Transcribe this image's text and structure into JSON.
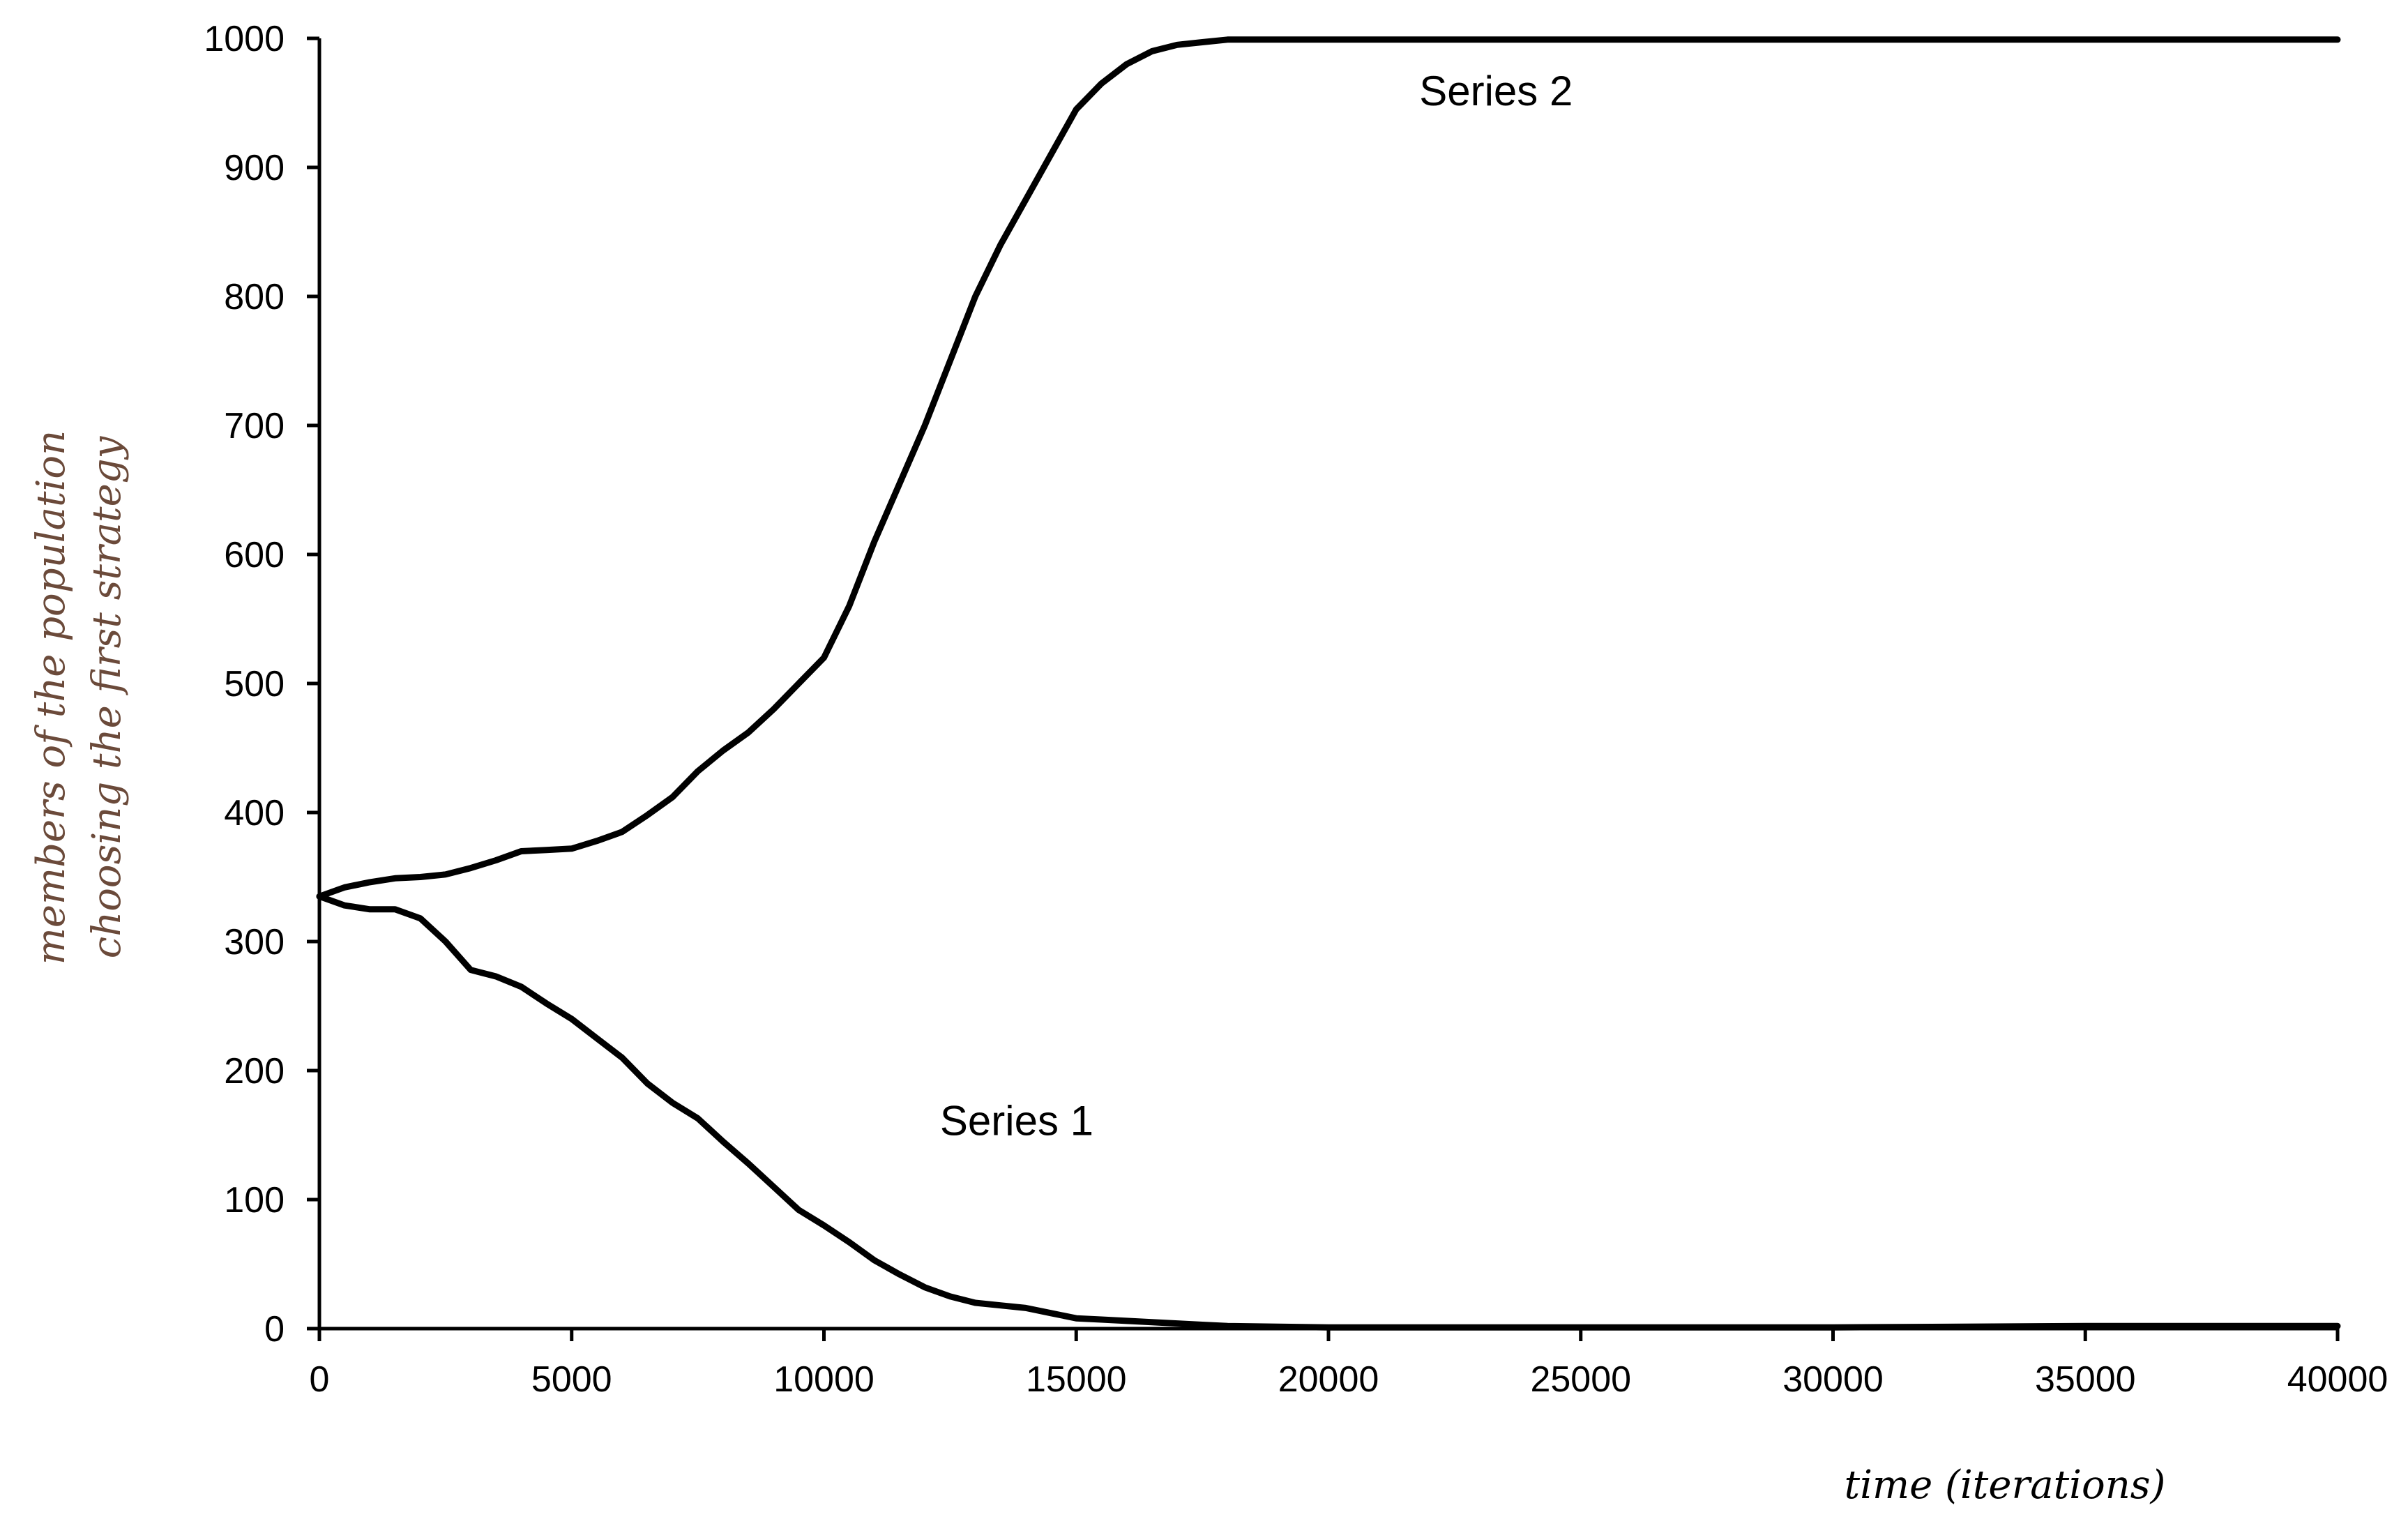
{
  "chart_data": {
    "type": "line",
    "title": "",
    "xlabel": "time (iterations)",
    "ylabel_lines": [
      "members of the population",
      "choosing the first strategy"
    ],
    "xlim": [
      0,
      40000
    ],
    "ylim": [
      0,
      1000
    ],
    "x_ticks": [
      0,
      5000,
      10000,
      15000,
      20000,
      25000,
      30000,
      35000,
      40000
    ],
    "y_ticks": [
      0,
      100,
      200,
      300,
      400,
      500,
      600,
      700,
      800,
      900,
      1000
    ],
    "grid": false,
    "legend": "none",
    "series": [
      {
        "name": "Series 1",
        "x": [
          0,
          500,
          1000,
          1500,
          2000,
          2500,
          3000,
          3500,
          4000,
          4500,
          5000,
          5500,
          6000,
          6500,
          7000,
          7500,
          8000,
          8500,
          9000,
          9500,
          10000,
          10500,
          11000,
          11500,
          12000,
          12500,
          13000,
          13500,
          14000,
          14500,
          15000,
          15500,
          16000,
          16500,
          17000,
          17500,
          18000,
          20000,
          25000,
          30000,
          35000,
          38000,
          40000
        ],
        "values": [
          335,
          328,
          325,
          325,
          318,
          300,
          278,
          273,
          265,
          252,
          240,
          225,
          210,
          190,
          175,
          163,
          145,
          128,
          110,
          92,
          80,
          67,
          53,
          42,
          32,
          25,
          20,
          18,
          16,
          12,
          8,
          7,
          6,
          5,
          4,
          3,
          2,
          1,
          1,
          1,
          2,
          2,
          2
        ]
      },
      {
        "name": "Series 2",
        "x": [
          0,
          500,
          1000,
          1500,
          2000,
          2500,
          3000,
          3500,
          4000,
          4500,
          5000,
          5500,
          6000,
          6500,
          7000,
          7500,
          8000,
          8500,
          9000,
          9500,
          10000,
          10500,
          11000,
          11500,
          12000,
          12500,
          13000,
          13500,
          14000,
          14500,
          15000,
          15500,
          16000,
          16500,
          17000,
          17500,
          18000,
          20000,
          25000,
          30000,
          35000,
          40000
        ],
        "values": [
          335,
          342,
          346,
          349,
          350,
          352,
          357,
          363,
          370,
          371,
          372,
          378,
          385,
          398,
          412,
          432,
          448,
          462,
          480,
          500,
          520,
          560,
          610,
          655,
          700,
          750,
          800,
          840,
          875,
          910,
          945,
          965,
          980,
          990,
          995,
          997,
          999,
          999,
          999,
          999,
          999,
          999
        ]
      }
    ],
    "annotations": [
      {
        "text": "Series 1",
        "x": 12300,
        "y": 150
      },
      {
        "text": "Series 2",
        "x": 21800,
        "y": 948
      }
    ]
  }
}
